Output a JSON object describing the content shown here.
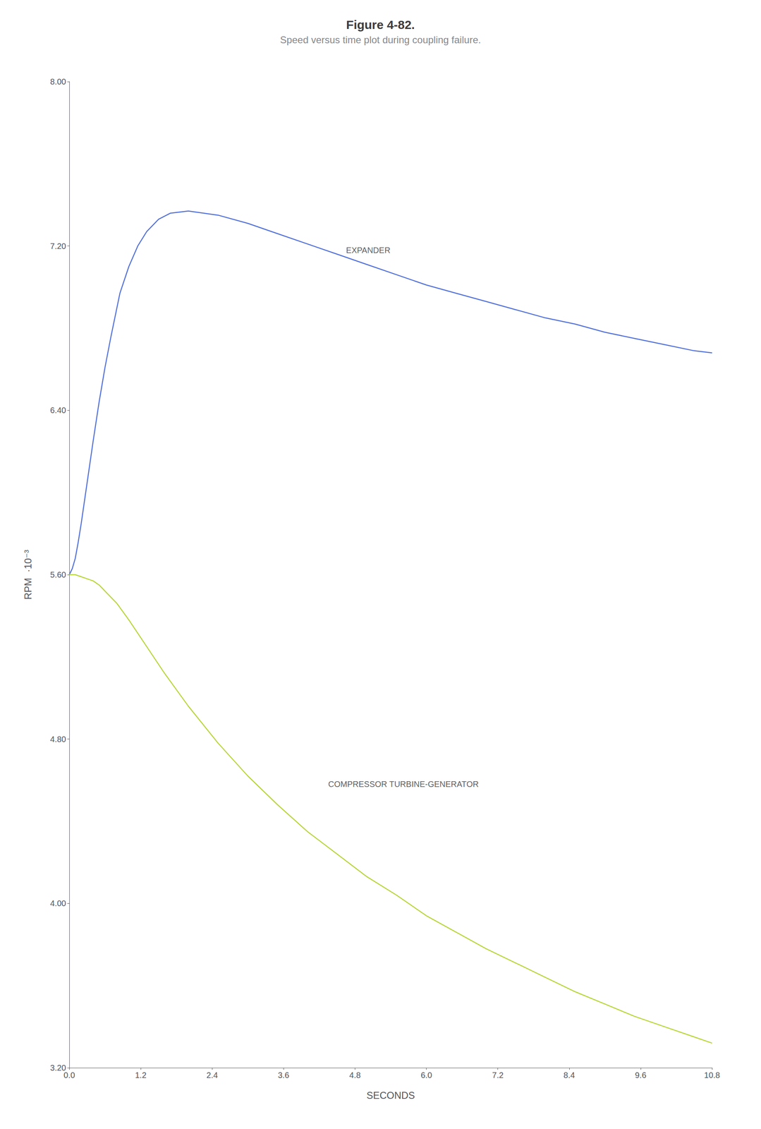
{
  "chart_data": {
    "type": "line",
    "title": "Figure 4-82.",
    "subtitle": "Speed versus time plot during coupling failure.",
    "xlabel": "SECONDS",
    "ylabel": "RPM  ·10⁻³",
    "xlim": [
      0.0,
      10.8
    ],
    "ylim": [
      3.2,
      8.0
    ],
    "xticks": [
      {
        "value": 0,
        "label": "0.0"
      },
      1.2,
      2.4,
      3.6,
      4.8,
      {
        "value": 6,
        "label": "6.0"
      },
      7.2,
      8.4,
      9.6,
      10.8
    ],
    "yticks": [
      {
        "value": 3.2,
        "label": "3.20"
      },
      {
        "value": 4,
        "label": "4.00"
      },
      {
        "value": 4.8,
        "label": "4.80"
      },
      {
        "value": 5.6,
        "label": "5.60"
      },
      {
        "value": 6.4,
        "label": "6.40"
      },
      {
        "value": 7.2,
        "label": "7.20"
      },
      {
        "value": 8,
        "label": "8.00"
      }
    ],
    "grid": false,
    "series": [
      {
        "x": [
          0.0,
          0.05,
          0.1,
          0.15,
          0.2,
          0.3,
          0.4,
          0.5,
          0.6,
          0.7,
          0.85,
          1.0,
          1.15,
          1.3,
          1.5,
          1.7,
          2.0,
          2.5,
          3.0,
          3.5,
          4.0,
          4.5,
          5.0,
          5.5,
          6.0,
          6.5,
          7.0,
          7.5,
          8.0,
          8.5,
          9.0,
          9.5,
          10.0,
          10.5,
          10.8
        ],
        "values": [
          5.6,
          5.63,
          5.68,
          5.76,
          5.85,
          6.05,
          6.25,
          6.44,
          6.61,
          6.76,
          6.97,
          7.1,
          7.2,
          7.27,
          7.33,
          7.36,
          7.37,
          7.35,
          7.31,
          7.26,
          7.21,
          7.16,
          7.11,
          7.06,
          7.01,
          6.97,
          6.93,
          6.89,
          6.85,
          6.82,
          6.78,
          6.75,
          6.72,
          6.69,
          6.68
        ]
      },
      {
        "x": [
          0.0,
          0.1,
          0.2,
          0.3,
          0.4,
          0.5,
          0.6,
          0.8,
          1.0,
          1.3,
          1.6,
          2.0,
          2.5,
          3.0,
          3.5,
          4.0,
          4.5,
          5.0,
          5.5,
          6.0,
          6.5,
          7.0,
          7.5,
          8.0,
          8.5,
          9.0,
          9.5,
          10.0,
          10.5,
          10.8
        ],
        "values": [
          5.6,
          5.6,
          5.59,
          5.58,
          5.57,
          5.55,
          5.52,
          5.46,
          5.38,
          5.25,
          5.12,
          4.96,
          4.78,
          4.62,
          4.48,
          4.35,
          4.24,
          4.13,
          4.04,
          3.94,
          3.86,
          3.78,
          3.71,
          3.64,
          3.57,
          3.51,
          3.45,
          3.4,
          3.35,
          3.32
        ]
      }
    ],
    "annotations": [
      {
        "text": "EXPANDER",
        "x": 4.65,
        "y": 7.18
      },
      {
        "text": "COMPRESSOR TURBINE-GENERATOR",
        "x": 4.35,
        "y": 4.58
      }
    ]
  }
}
